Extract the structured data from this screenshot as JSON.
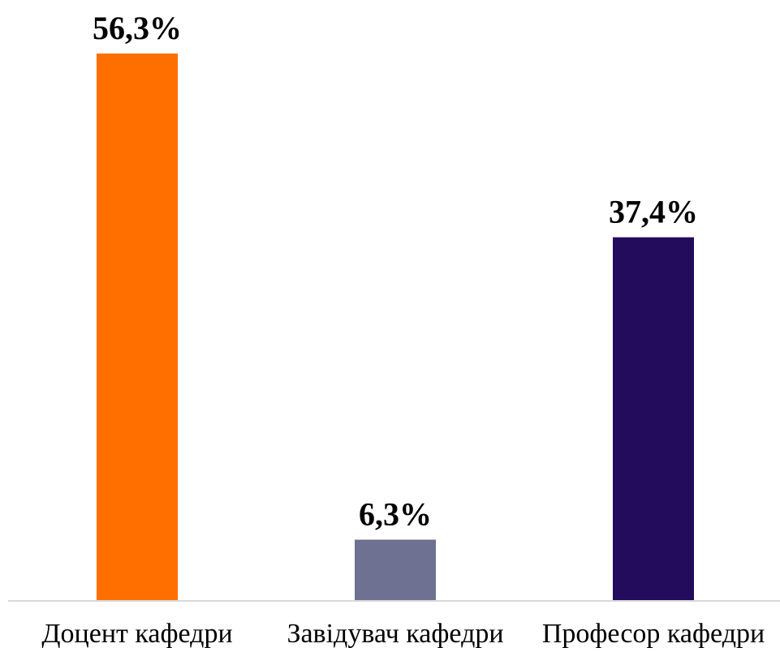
{
  "chart_data": {
    "type": "bar",
    "categories": [
      "Доцент кафедри",
      "Завідувач кафедри",
      "Професор кафедри"
    ],
    "values": [
      56.3,
      6.3,
      37.4
    ],
    "data_labels": [
      "56,3%",
      "6,3%",
      "37,4%"
    ],
    "colors": [
      "#FF6F00",
      "#6E7191",
      "#220C5B"
    ],
    "ylim": [
      0,
      60
    ],
    "grid": false,
    "title": "",
    "xlabel": "",
    "ylabel": ""
  }
}
